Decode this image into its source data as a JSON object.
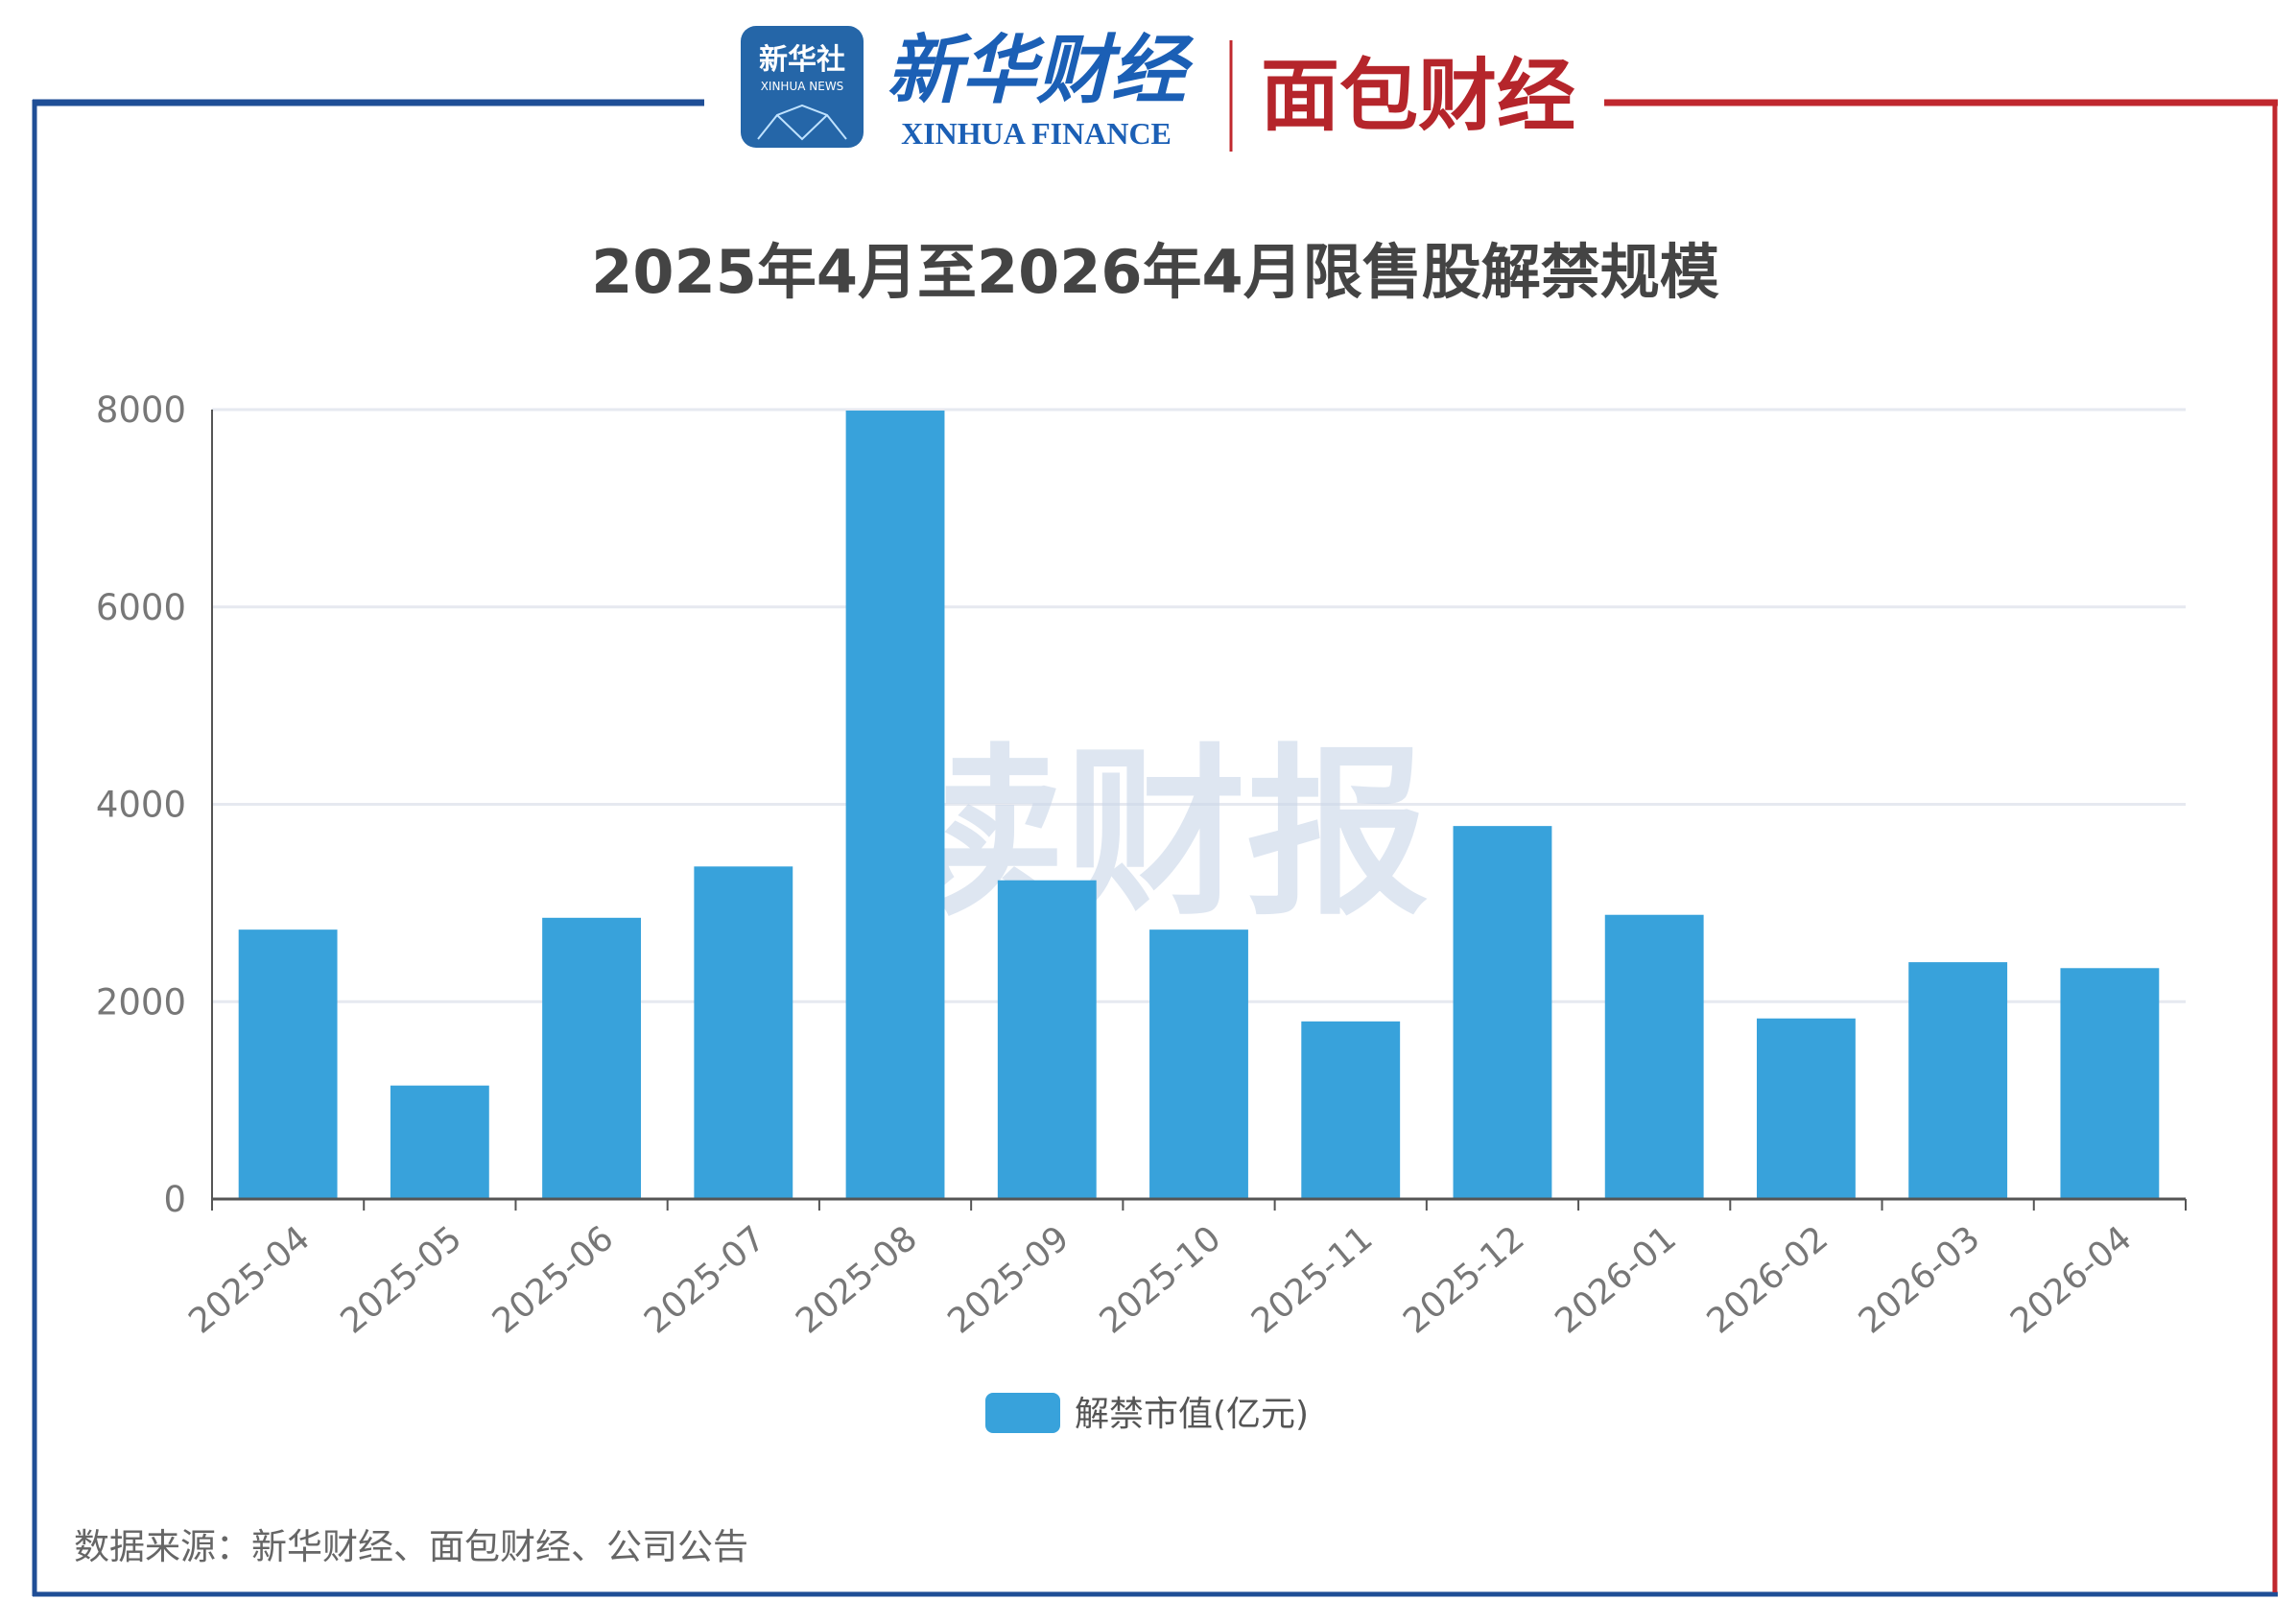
{
  "header": {
    "logo_xinhua_news": "新华社",
    "logo_xinhua_news_en": "XINHUA NEWS",
    "logo_xinhua_finance": "新华财经",
    "logo_xinhua_finance_en": "XINHUA FINANCE",
    "logo_mianbao": "面包财经"
  },
  "watermark": "读财报",
  "source": "数据来源：新华财经、面包财经、公司公告",
  "colors": {
    "bar": "#38a2db",
    "frame_left": "#1f4e96",
    "frame_right": "#c0282e",
    "grid": "#e6e9f0"
  },
  "chart_data": {
    "type": "bar",
    "title": "2025年4月至2026年4月限售股解禁规模",
    "categories": [
      "2025-04",
      "2025-05",
      "2025-06",
      "2025-07",
      "2025-08",
      "2025-09",
      "2025-10",
      "2025-11",
      "2025-12",
      "2026-01",
      "2026-02",
      "2026-03",
      "2026-04"
    ],
    "series": [
      {
        "name": "解禁市值(亿元)",
        "values": [
          2730,
          1150,
          2850,
          3370,
          7990,
          3230,
          2730,
          1800,
          3780,
          2880,
          1830,
          2400,
          2340
        ]
      }
    ],
    "ylim": [
      0,
      8000
    ],
    "yticks": [
      "0",
      "2000",
      "4000",
      "6000",
      "8000"
    ],
    "grid": true,
    "legend": "bottom-center"
  }
}
